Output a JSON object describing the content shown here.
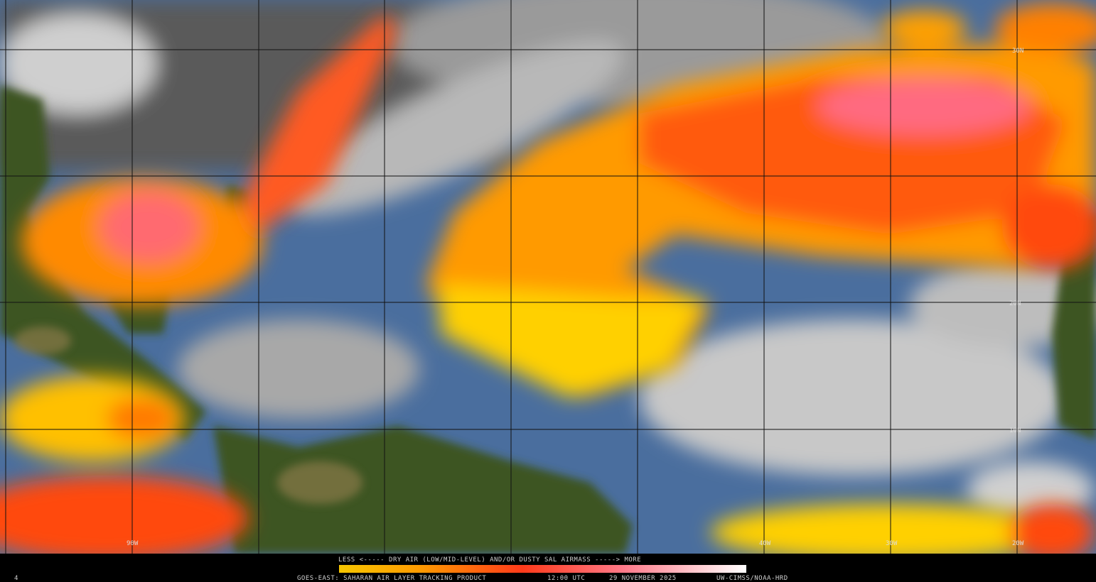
{
  "map": {
    "legend_label": "LESS <----- DRY AIR (LOW/MID-LEVEL) AND/OR DUSTY SAL AIRMASS -----> MORE",
    "grid_labels": {
      "longitude": [
        "90W",
        "40W",
        "30W",
        "20W"
      ],
      "latitude": [
        "30N",
        "20N",
        "10N"
      ]
    }
  },
  "footer": {
    "frame": "4",
    "product": "GOES-EAST: SAHARAN AIR LAYER TRACKING PRODUCT",
    "time": "12:00 UTC",
    "date": "29 NOVEMBER 2025",
    "credit": "UW-CIMSS/NOAA-HRD"
  }
}
